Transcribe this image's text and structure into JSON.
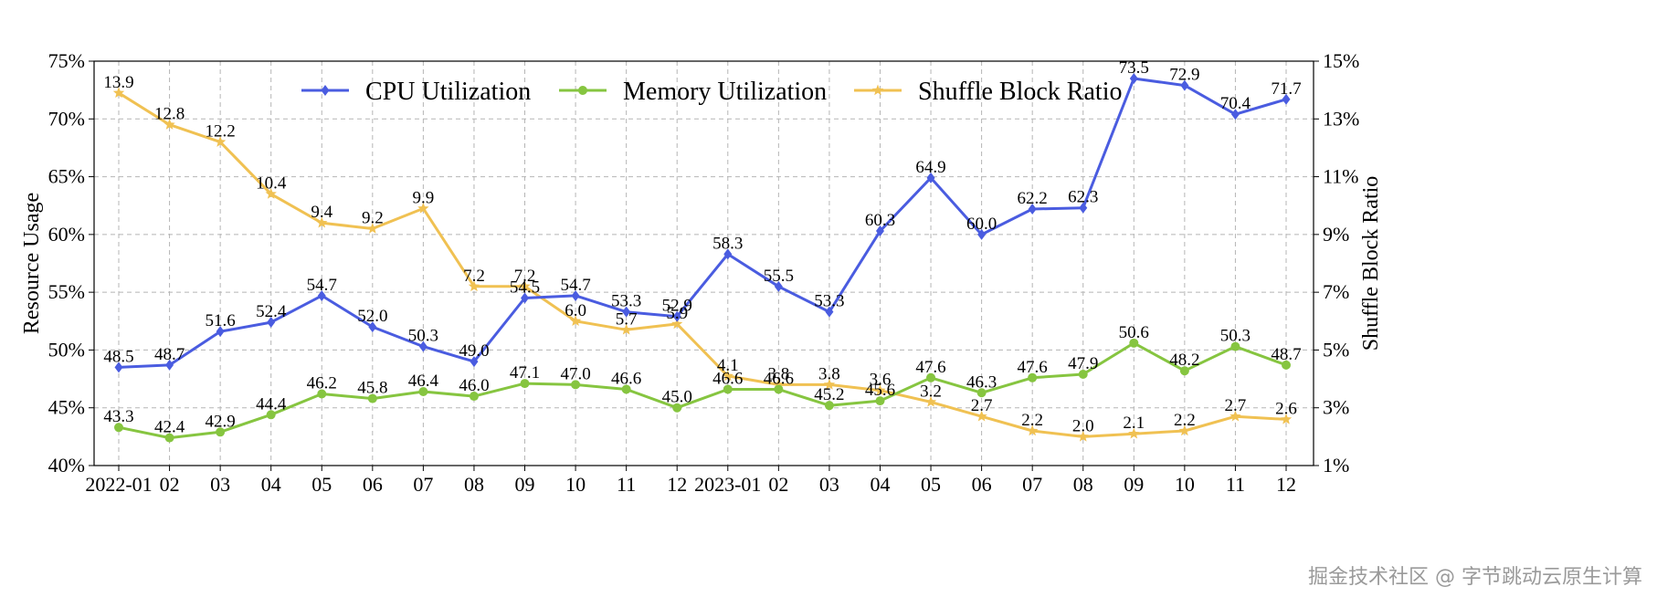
{
  "chart_data": {
    "type": "line",
    "categories": [
      "2022-01",
      "02",
      "03",
      "04",
      "05",
      "06",
      "07",
      "08",
      "09",
      "10",
      "11",
      "12",
      "2023-01",
      "02",
      "03",
      "04",
      "05",
      "06",
      "07",
      "08",
      "09",
      "10",
      "11",
      "12"
    ],
    "ylabel": "Resource Usage",
    "ylabel_right": "Shuffle Block Ratio",
    "ylim": [
      40,
      75
    ],
    "ylim_right": [
      1,
      15
    ],
    "yticks": [
      "40%",
      "45%",
      "50%",
      "55%",
      "60%",
      "65%",
      "70%",
      "75%"
    ],
    "yticks_right": [
      "1%",
      "3%",
      "5%",
      "7%",
      "9%",
      "11%",
      "13%",
      "15%"
    ],
    "grid": true,
    "legend_position": "top",
    "series": [
      {
        "name": "CPU Utilization",
        "axis": "left",
        "color": "#4a5ce0",
        "marker": "diamond",
        "values": [
          48.5,
          48.7,
          51.6,
          52.4,
          54.7,
          52.0,
          50.3,
          49.0,
          54.5,
          54.7,
          53.3,
          52.9,
          58.3,
          55.5,
          53.3,
          60.3,
          64.9,
          60.0,
          62.2,
          62.3,
          73.5,
          72.9,
          70.4,
          71.7
        ]
      },
      {
        "name": "Memory Utilization",
        "axis": "left",
        "color": "#86c540",
        "marker": "circle",
        "values": [
          43.3,
          42.4,
          42.9,
          44.4,
          46.2,
          45.8,
          46.4,
          46.0,
          47.1,
          47.0,
          46.6,
          45.0,
          46.6,
          46.6,
          45.2,
          45.6,
          47.6,
          46.3,
          47.6,
          47.9,
          50.6,
          48.2,
          50.3,
          48.7
        ]
      },
      {
        "name": "Shuffle Block Ratio",
        "axis": "right",
        "color": "#f0c152",
        "marker": "star",
        "values": [
          13.9,
          12.8,
          12.2,
          10.4,
          9.4,
          9.2,
          9.9,
          7.2,
          7.2,
          6.0,
          5.7,
          5.9,
          4.1,
          3.8,
          3.8,
          3.6,
          3.2,
          2.7,
          2.2,
          2.0,
          2.1,
          2.2,
          2.7,
          2.6
        ]
      }
    ]
  },
  "watermark": "掘金技术社区 @ 字节跳动云原生计算"
}
